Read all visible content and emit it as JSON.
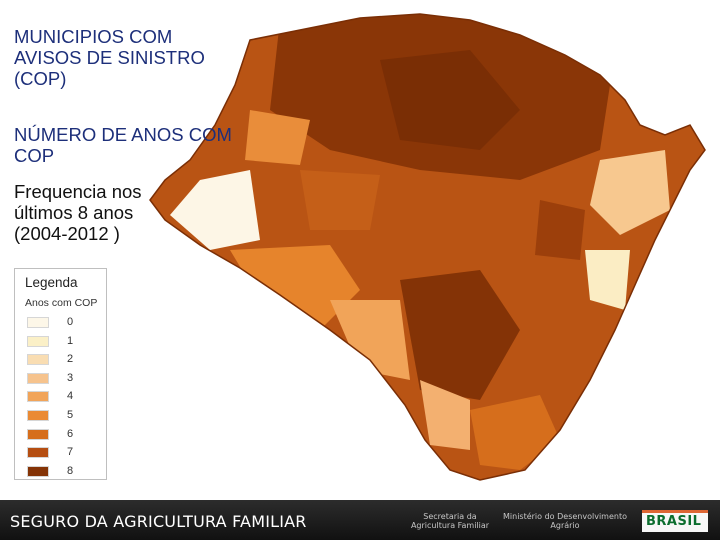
{
  "title": {
    "lines": [
      "MUNICIPIOS COM",
      "AVISOS DE SINISTRO",
      "(COP)"
    ]
  },
  "subtitle": {
    "lines": [
      "NÚMERO DE ANOS COM",
      "COP"
    ]
  },
  "period": {
    "lines": [
      "Frequencia nos",
      "últimos 8 anos",
      "(2004-2012 )"
    ]
  },
  "legend": {
    "title": "Legenda",
    "subtitle": "Anos com COP",
    "items": [
      {
        "label": "0",
        "color": "#fdf7e8"
      },
      {
        "label": "1",
        "color": "#fbf0c7"
      },
      {
        "label": "2",
        "color": "#f9ddb2"
      },
      {
        "label": "3",
        "color": "#f6c38d"
      },
      {
        "label": "4",
        "color": "#f1a459"
      },
      {
        "label": "5",
        "color": "#ea8a34"
      },
      {
        "label": "6",
        "color": "#d66e1c"
      },
      {
        "label": "7",
        "color": "#b54e12"
      },
      {
        "label": "8",
        "color": "#843306"
      }
    ]
  },
  "footer": {
    "title": "SEGURO DA AGRICULTURA FAMILIAR",
    "seal_left": "Secretaria da Agricultura Familiar",
    "seal_right": "Ministério do Desenvolvimento Agrário",
    "brand": "BRASIL"
  },
  "colors": {
    "title_text": "#1d2f7a",
    "footer_bg": "#1a1a1a"
  }
}
